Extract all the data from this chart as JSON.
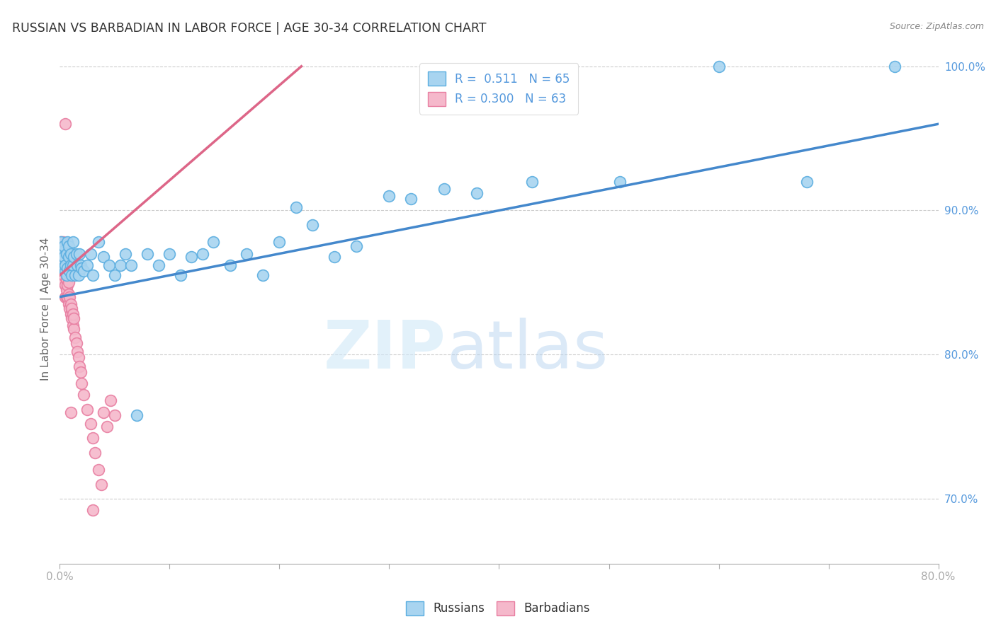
{
  "title": "RUSSIAN VS BARBADIAN IN LABOR FORCE | AGE 30-34 CORRELATION CHART",
  "source": "Source: ZipAtlas.com",
  "ylabel": "In Labor Force | Age 30-34",
  "xlim": [
    0.0,
    0.8
  ],
  "ylim": [
    0.655,
    1.008
  ],
  "xticks": [
    0.0,
    0.1,
    0.2,
    0.3,
    0.4,
    0.5,
    0.6,
    0.7,
    0.8
  ],
  "xticklabels": [
    "0.0%",
    "",
    "",
    "",
    "",
    "",
    "",
    "",
    "80.0%"
  ],
  "yticks": [
    0.7,
    0.8,
    0.9,
    1.0
  ],
  "yticklabels": [
    "70.0%",
    "80.0%",
    "90.0%",
    "100.0%"
  ],
  "watermark_zip": "ZIP",
  "watermark_atlas": "atlas",
  "legend_russian_label": "Russians",
  "legend_barbadian_label": "Barbadians",
  "russian_R": "0.511",
  "russian_N": "65",
  "barbadian_R": "0.300",
  "barbadian_N": "63",
  "russian_fill": "#A8D4F0",
  "barbadian_fill": "#F5B8CB",
  "russian_edge": "#5BAEE0",
  "barbadian_edge": "#E87EA1",
  "russian_line_color": "#4488CC",
  "barbadian_line_color": "#DD6688",
  "grid_color": "#CCCCCC",
  "background_color": "#FFFFFF",
  "title_color": "#333333",
  "axis_tick_color": "#5599DD",
  "legend_text_color": "#333333",
  "legend_value_color": "#5599DD",
  "russians_x": [
    0.001,
    0.002,
    0.002,
    0.003,
    0.003,
    0.004,
    0.004,
    0.005,
    0.005,
    0.006,
    0.006,
    0.007,
    0.007,
    0.008,
    0.008,
    0.009,
    0.01,
    0.01,
    0.011,
    0.012,
    0.012,
    0.013,
    0.014,
    0.015,
    0.016,
    0.017,
    0.018,
    0.019,
    0.02,
    0.022,
    0.025,
    0.028,
    0.03,
    0.035,
    0.04,
    0.045,
    0.05,
    0.055,
    0.06,
    0.065,
    0.07,
    0.08,
    0.09,
    0.1,
    0.11,
    0.12,
    0.13,
    0.14,
    0.155,
    0.17,
    0.185,
    0.2,
    0.215,
    0.23,
    0.25,
    0.27,
    0.3,
    0.32,
    0.35,
    0.38,
    0.43,
    0.51,
    0.6,
    0.68,
    0.76
  ],
  "russians_y": [
    0.878,
    0.87,
    0.865,
    0.872,
    0.86,
    0.875,
    0.868,
    0.858,
    0.862,
    0.855,
    0.87,
    0.878,
    0.86,
    0.868,
    0.875,
    0.858,
    0.862,
    0.87,
    0.855,
    0.878,
    0.862,
    0.868,
    0.855,
    0.87,
    0.862,
    0.855,
    0.87,
    0.862,
    0.86,
    0.858,
    0.862,
    0.87,
    0.855,
    0.878,
    0.868,
    0.862,
    0.855,
    0.862,
    0.87,
    0.862,
    0.758,
    0.87,
    0.862,
    0.87,
    0.855,
    0.868,
    0.87,
    0.878,
    0.862,
    0.87,
    0.855,
    0.878,
    0.902,
    0.89,
    0.868,
    0.875,
    0.91,
    0.908,
    0.915,
    0.912,
    0.92,
    0.92,
    1.0,
    0.92,
    1.0
  ],
  "barbadians_x": [
    0.001,
    0.001,
    0.001,
    0.002,
    0.002,
    0.002,
    0.002,
    0.003,
    0.003,
    0.003,
    0.003,
    0.003,
    0.004,
    0.004,
    0.004,
    0.004,
    0.004,
    0.004,
    0.005,
    0.005,
    0.005,
    0.005,
    0.006,
    0.006,
    0.006,
    0.006,
    0.007,
    0.007,
    0.007,
    0.008,
    0.008,
    0.008,
    0.009,
    0.009,
    0.01,
    0.01,
    0.011,
    0.011,
    0.012,
    0.012,
    0.013,
    0.013,
    0.014,
    0.015,
    0.016,
    0.017,
    0.018,
    0.019,
    0.02,
    0.022,
    0.025,
    0.028,
    0.03,
    0.032,
    0.035,
    0.038,
    0.04,
    0.043,
    0.046,
    0.05,
    0.03,
    0.01,
    0.005
  ],
  "barbadians_y": [
    0.86,
    0.87,
    0.878,
    0.858,
    0.862,
    0.87,
    0.865,
    0.855,
    0.868,
    0.875,
    0.862,
    0.878,
    0.85,
    0.858,
    0.862,
    0.87,
    0.868,
    0.855,
    0.84,
    0.848,
    0.858,
    0.862,
    0.84,
    0.845,
    0.852,
    0.858,
    0.84,
    0.848,
    0.855,
    0.835,
    0.842,
    0.85,
    0.832,
    0.84,
    0.828,
    0.835,
    0.825,
    0.832,
    0.82,
    0.828,
    0.818,
    0.825,
    0.812,
    0.808,
    0.802,
    0.798,
    0.792,
    0.788,
    0.78,
    0.772,
    0.762,
    0.752,
    0.742,
    0.732,
    0.72,
    0.71,
    0.76,
    0.75,
    0.768,
    0.758,
    0.692,
    0.76,
    0.96
  ],
  "russian_trend_x": [
    0.0,
    0.8
  ],
  "russian_trend_y": [
    0.84,
    0.96
  ],
  "barbadian_trend_x": [
    0.0,
    0.22
  ],
  "barbadian_trend_y": [
    0.855,
    1.0
  ]
}
